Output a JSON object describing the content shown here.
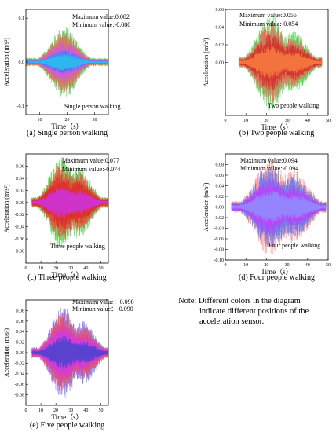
{
  "note": {
    "line1": "Note: Different colors in the diagram",
    "line2": "indicate different positions of  the",
    "line3": "acceleration sensor."
  },
  "series_colors": [
    "#33cc33",
    "#ff3b3b",
    "#2255ff",
    "#cc33ff",
    "#22ccee"
  ],
  "chart_data": [
    {
      "type": "line",
      "caption": "(a) Single person walking",
      "title": "Single person walking",
      "xlabel": "Time（s）",
      "ylabel": "Acceleration  (m/s²)",
      "xlim": [
        5,
        35
      ],
      "ylim": [
        -0.12,
        0.12
      ],
      "xticks": [
        "10",
        "20",
        "30"
      ],
      "xtick_vals": [
        10,
        20,
        30
      ],
      "yticks": [
        "-0.1",
        "0.0",
        "0.1"
      ],
      "ytick_vals": [
        -0.1,
        0,
        0.1
      ],
      "annotations": [
        "Maximum value:0.082",
        "Minimum value:-0.080"
      ],
      "max": 0.082,
      "min": -0.08,
      "t_start": 5,
      "t_end": 35,
      "envelope_peaks": [
        {
          "t": 19,
          "a": 0.082
        }
      ],
      "colors": [
        "#33cc33",
        "#ff5555",
        "#cc55ff",
        "#3377ff",
        "#22ccee"
      ]
    },
    {
      "type": "line",
      "caption": "(b) Two people walking",
      "title": "Two people walking",
      "xlabel": "Time（s）",
      "ylabel": "Acceleration  (m/s²)",
      "xlim": [
        0,
        50
      ],
      "ylim": [
        -0.06,
        0.06
      ],
      "xticks": [
        "0",
        "10",
        "20",
        "30",
        "40",
        "50"
      ],
      "xtick_vals": [
        0,
        10,
        20,
        30,
        40,
        50
      ],
      "yticks": [
        "0.00",
        "0.02",
        "0.04",
        "0.06"
      ],
      "ytick_vals": [
        0,
        0.02,
        0.04,
        0.06
      ],
      "annotations": [
        "Maximum value:0.055",
        "Minimum value:-0.054"
      ],
      "max": 0.055,
      "min": -0.054,
      "t_start": 7,
      "t_end": 47,
      "envelope_peaks": [
        {
          "t": 22,
          "a": 0.055
        },
        {
          "t": 33,
          "a": 0.035
        }
      ],
      "colors": [
        "#33cc33",
        "#ff5555",
        "#cc2222",
        "#ff8844"
      ]
    },
    {
      "type": "line",
      "caption": "(c) Three people walking",
      "title": "Three people walking",
      "xlabel": "Time（s）",
      "ylabel": "Acceleration  (m/s²)",
      "xlim": [
        0,
        55
      ],
      "ylim": [
        -0.1,
        0.08
      ],
      "xticks": [
        "0",
        "10",
        "20",
        "30",
        "40",
        "50"
      ],
      "xtick_vals": [
        0,
        10,
        20,
        30,
        40,
        50
      ],
      "yticks": [
        "-0.08",
        "-0.06",
        "-0.04",
        "-0.02",
        "0.00",
        "0.02",
        "0.04",
        "0.06"
      ],
      "ytick_vals": [
        -0.08,
        -0.06,
        -0.04,
        -0.02,
        0,
        0.02,
        0.04,
        0.06
      ],
      "annotations": [
        "Maximum value:0.077",
        "Minimum value:-0.074"
      ],
      "max": 0.077,
      "min": -0.074,
      "t_start": 4,
      "t_end": 55,
      "envelope_peaks": [
        {
          "t": 24,
          "a": 0.077
        },
        {
          "t": 35,
          "a": 0.06
        }
      ],
      "colors": [
        "#33cc33",
        "#ff3333",
        "#dd2222",
        "#cc33ff"
      ]
    },
    {
      "type": "line",
      "caption": "(d) Four people walking",
      "title": "Four people walking",
      "xlabel": "Time（s）",
      "ylabel": "Acceleration  (m/s²)",
      "xlim": [
        0,
        50
      ],
      "ylim": [
        -0.1,
        0.1
      ],
      "xticks": [
        "0",
        "10",
        "20",
        "30",
        "40",
        "50"
      ],
      "xtick_vals": [
        0,
        10,
        20,
        30,
        40,
        50
      ],
      "yticks": [
        "-0.10",
        "-0.08",
        "-0.06",
        "-0.04",
        "-0.02",
        "0.00",
        "0.02",
        "0.04",
        "0.06",
        "0.08"
      ],
      "ytick_vals": [
        -0.1,
        -0.08,
        -0.06,
        -0.04,
        -0.02,
        0,
        0.02,
        0.04,
        0.06,
        0.08
      ],
      "annotations": [
        "Maximum value:0.094",
        "Minimum value:-0.094"
      ],
      "max": 0.094,
      "min": -0.094,
      "t_start": 3,
      "t_end": 49,
      "envelope_peaks": [
        {
          "t": 22,
          "a": 0.094
        },
        {
          "t": 33,
          "a": 0.07
        }
      ],
      "colors": [
        "#ff7777",
        "#4477ff",
        "#cc33ff",
        "#8899ff"
      ]
    },
    {
      "type": "line",
      "caption": "(e) Five people walking",
      "title": "Five people walking",
      "xlabel": "Time（s）",
      "ylabel": "Acceleration  (m/s²)",
      "xlim": [
        0,
        55
      ],
      "ylim": [
        -0.1,
        0.1
      ],
      "xticks": [
        "0",
        "10",
        "20",
        "30",
        "40",
        "50"
      ],
      "xtick_vals": [
        0,
        10,
        20,
        30,
        40,
        50
      ],
      "yticks": [
        "-0.08",
        "-0.06",
        "-0.04",
        "-0.02",
        "0.00",
        "0.02",
        "0.04",
        "0.06",
        "0.08"
      ],
      "ytick_vals": [
        -0.08,
        -0.06,
        -0.04,
        -0.02,
        0,
        0.02,
        0.04,
        0.06,
        0.08
      ],
      "annotations": [
        "Maximum value：0.090",
        "Minimun value：-0.090"
      ],
      "max": 0.09,
      "min": -0.09,
      "t_start": 4,
      "t_end": 55,
      "envelope_peaks": [
        {
          "t": 25,
          "a": 0.09
        },
        {
          "t": 38,
          "a": 0.06
        }
      ],
      "colors": [
        "#6655ee",
        "#ff4444",
        "#cc33ff",
        "#3344cc"
      ]
    }
  ]
}
